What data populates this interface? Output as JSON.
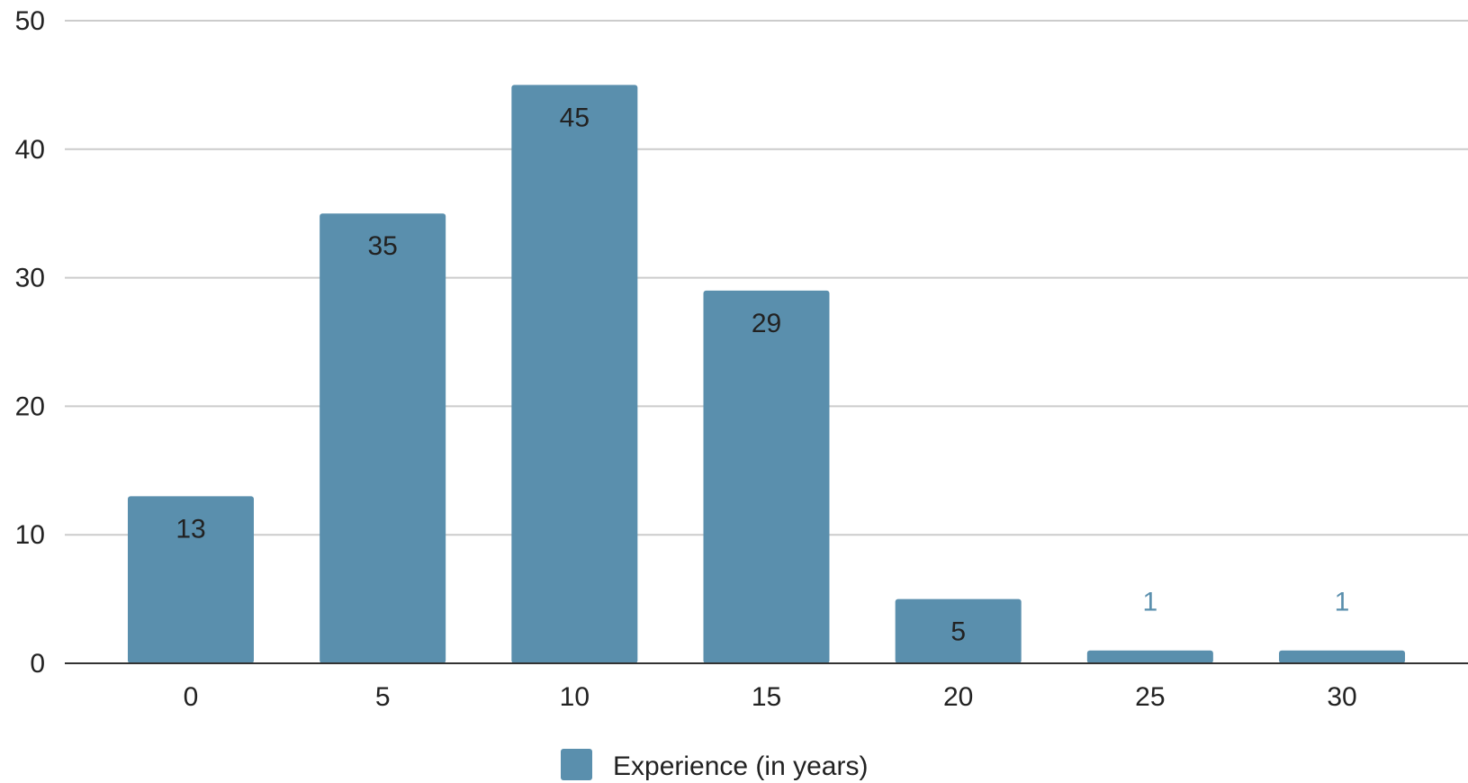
{
  "chart_data": {
    "type": "bar",
    "categories": [
      "0",
      "5",
      "10",
      "15",
      "20",
      "25",
      "30"
    ],
    "series": [
      {
        "name": "Experience (in years)",
        "values": [
          13,
          35,
          45,
          29,
          5,
          1,
          1
        ],
        "color": "#5a8fad"
      }
    ],
    "ylim": [
      0,
      50
    ],
    "yticks": [
      0,
      10,
      20,
      30,
      40,
      50
    ],
    "grid": true,
    "legend": "bottom",
    "data_labels": true,
    "colors": {
      "bar": "#5a8fad",
      "grid": "#cccccc",
      "axis": "#333333",
      "label_inside": "#222222",
      "label_outside": "#5a8fad"
    }
  }
}
